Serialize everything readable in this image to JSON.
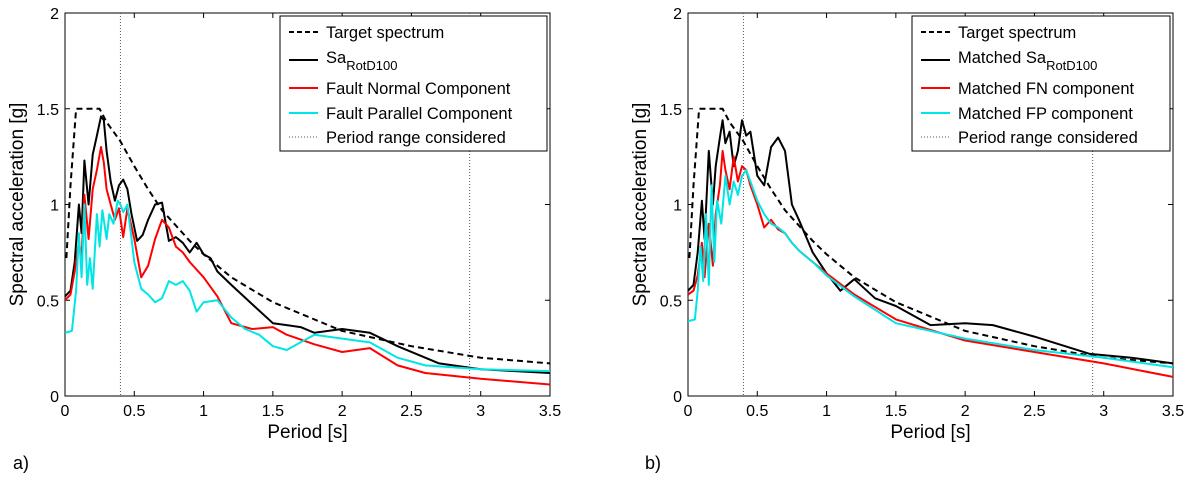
{
  "chart_data": [
    {
      "type": "line",
      "panel_label": "a)",
      "xlabel": "Period [s]",
      "ylabel": "Spectral acceleration [g]",
      "xlim": [
        0,
        3.5
      ],
      "ylim": [
        0,
        2
      ],
      "xticks": [
        "0",
        "0.5",
        "1",
        "1.5",
        "2",
        "2.5",
        "3",
        "3.5"
      ],
      "yticks": [
        "0",
        "0.5",
        "1",
        "1.5",
        "2"
      ],
      "legend_position": "top-right",
      "vlines": [
        0.4,
        2.92
      ],
      "series": [
        {
          "name": "Target spectrum",
          "color": "#000000",
          "style": "dashed",
          "x": [
            0.01,
            0.04,
            0.08,
            0.25,
            0.3,
            0.35,
            0.4,
            0.5,
            0.6,
            0.7,
            0.8,
            0.9,
            1.0,
            1.2,
            1.5,
            2.0,
            2.5,
            3.0,
            3.5
          ],
          "y": [
            0.72,
            1.1,
            1.5,
            1.5,
            1.43,
            1.38,
            1.33,
            1.2,
            1.08,
            0.97,
            0.89,
            0.81,
            0.74,
            0.62,
            0.49,
            0.34,
            0.26,
            0.2,
            0.17
          ]
        },
        {
          "name_main": "Sa",
          "name_sub": "RotD100",
          "color": "#000000",
          "style": "solid",
          "x": [
            0,
            0.04,
            0.07,
            0.1,
            0.12,
            0.14,
            0.17,
            0.2,
            0.23,
            0.26,
            0.28,
            0.3,
            0.33,
            0.36,
            0.39,
            0.42,
            0.45,
            0.48,
            0.52,
            0.56,
            0.6,
            0.65,
            0.7,
            0.75,
            0.8,
            0.85,
            0.9,
            0.95,
            1.0,
            1.05,
            1.1,
            1.2,
            1.35,
            1.5,
            1.6,
            1.7,
            1.8,
            2.0,
            2.2,
            2.4,
            2.7,
            3.0,
            3.5
          ],
          "y": [
            0.52,
            0.55,
            0.7,
            1.0,
            0.85,
            1.23,
            1.0,
            1.26,
            1.36,
            1.46,
            1.44,
            1.28,
            1.12,
            1.02,
            1.1,
            1.13,
            1.08,
            0.95,
            0.81,
            0.84,
            0.92,
            1.0,
            1.01,
            0.81,
            0.83,
            0.8,
            0.75,
            0.8,
            0.74,
            0.72,
            0.65,
            0.58,
            0.48,
            0.38,
            0.37,
            0.36,
            0.33,
            0.35,
            0.33,
            0.26,
            0.17,
            0.14,
            0.12
          ]
        },
        {
          "name": "Fault Normal Component",
          "color": "#ff0000",
          "style": "solid",
          "x": [
            0,
            0.04,
            0.07,
            0.1,
            0.12,
            0.14,
            0.17,
            0.2,
            0.23,
            0.26,
            0.28,
            0.3,
            0.33,
            0.36,
            0.39,
            0.42,
            0.45,
            0.5,
            0.55,
            0.6,
            0.65,
            0.7,
            0.75,
            0.8,
            0.85,
            0.9,
            1.0,
            1.1,
            1.2,
            1.35,
            1.5,
            1.6,
            1.8,
            2.0,
            2.2,
            2.4,
            2.6,
            3.0,
            3.5
          ],
          "y": [
            0.5,
            0.53,
            0.65,
            0.8,
            0.72,
            1.05,
            0.82,
            1.08,
            1.18,
            1.3,
            1.22,
            1.08,
            1.0,
            0.92,
            0.98,
            0.83,
            0.98,
            0.82,
            0.62,
            0.68,
            0.82,
            0.92,
            0.88,
            0.78,
            0.75,
            0.7,
            0.62,
            0.52,
            0.38,
            0.35,
            0.36,
            0.32,
            0.27,
            0.23,
            0.25,
            0.16,
            0.12,
            0.09,
            0.06
          ]
        },
        {
          "name": "Fault Parallel Component",
          "color": "#00e5e5",
          "style": "solid",
          "x": [
            0,
            0.05,
            0.08,
            0.1,
            0.12,
            0.14,
            0.16,
            0.18,
            0.2,
            0.23,
            0.25,
            0.27,
            0.3,
            0.32,
            0.35,
            0.38,
            0.4,
            0.42,
            0.45,
            0.5,
            0.55,
            0.6,
            0.65,
            0.7,
            0.75,
            0.8,
            0.85,
            0.9,
            0.95,
            1.0,
            1.1,
            1.2,
            1.3,
            1.4,
            1.5,
            1.6,
            1.8,
            2.0,
            2.2,
            2.4,
            2.6,
            3.0,
            3.5
          ],
          "y": [
            0.33,
            0.34,
            0.55,
            0.85,
            0.62,
            1.0,
            0.58,
            0.72,
            0.56,
            0.95,
            0.78,
            0.97,
            0.82,
            0.95,
            0.9,
            1.02,
            1.0,
            0.96,
            1.0,
            0.7,
            0.56,
            0.53,
            0.49,
            0.51,
            0.6,
            0.58,
            0.6,
            0.55,
            0.44,
            0.49,
            0.5,
            0.41,
            0.35,
            0.32,
            0.26,
            0.24,
            0.32,
            0.3,
            0.28,
            0.2,
            0.16,
            0.14,
            0.13
          ]
        }
      ]
    },
    {
      "type": "line",
      "panel_label": "b)",
      "xlabel": "Period [s]",
      "ylabel": "Spectral acceleration [g]",
      "xlim": [
        0,
        3.5
      ],
      "ylim": [
        0,
        2
      ],
      "xticks": [
        "0",
        "0.5",
        "1",
        "1.5",
        "2",
        "2.5",
        "3",
        "3.5"
      ],
      "yticks": [
        "0",
        "0.5",
        "1",
        "1.5",
        "2"
      ],
      "legend_position": "top-right",
      "vlines": [
        0.4,
        2.92
      ],
      "series": [
        {
          "name": "Target spectrum",
          "color": "#000000",
          "style": "dashed",
          "x": [
            0.01,
            0.04,
            0.08,
            0.25,
            0.3,
            0.35,
            0.4,
            0.5,
            0.6,
            0.7,
            0.8,
            0.9,
            1.0,
            1.2,
            1.5,
            2.0,
            2.5,
            3.0,
            3.5
          ],
          "y": [
            0.72,
            1.1,
            1.5,
            1.5,
            1.43,
            1.38,
            1.33,
            1.2,
            1.08,
            0.97,
            0.89,
            0.81,
            0.74,
            0.62,
            0.49,
            0.34,
            0.26,
            0.2,
            0.17
          ]
        },
        {
          "name_main": "Matched Sa",
          "name_sub": "RotD100",
          "color": "#000000",
          "style": "solid",
          "x": [
            0,
            0.04,
            0.07,
            0.1,
            0.12,
            0.15,
            0.18,
            0.2,
            0.23,
            0.25,
            0.27,
            0.3,
            0.33,
            0.36,
            0.39,
            0.42,
            0.45,
            0.5,
            0.55,
            0.6,
            0.65,
            0.7,
            0.75,
            0.8,
            0.9,
            1.0,
            1.1,
            1.2,
            1.35,
            1.5,
            1.75,
            2.0,
            2.2,
            2.5,
            2.9,
            3.2,
            3.5
          ],
          "y": [
            0.55,
            0.58,
            0.75,
            1.02,
            0.82,
            1.28,
            1.0,
            1.2,
            1.35,
            1.44,
            1.32,
            1.38,
            1.2,
            1.28,
            1.44,
            1.36,
            1.38,
            1.15,
            1.1,
            1.3,
            1.35,
            1.28,
            1.0,
            0.92,
            0.75,
            0.64,
            0.55,
            0.61,
            0.51,
            0.47,
            0.37,
            0.38,
            0.37,
            0.31,
            0.22,
            0.2,
            0.17
          ]
        },
        {
          "name": "Matched FN component",
          "color": "#ff0000",
          "style": "solid",
          "x": [
            0,
            0.04,
            0.07,
            0.1,
            0.12,
            0.15,
            0.18,
            0.2,
            0.23,
            0.25,
            0.27,
            0.3,
            0.33,
            0.36,
            0.39,
            0.42,
            0.45,
            0.5,
            0.55,
            0.6,
            0.65,
            0.7,
            0.75,
            0.8,
            0.9,
            1.0,
            1.2,
            1.5,
            2.0,
            2.5,
            3.0,
            3.5
          ],
          "y": [
            0.53,
            0.55,
            0.63,
            0.8,
            0.62,
            0.9,
            0.68,
            0.95,
            1.1,
            1.28,
            1.18,
            1.08,
            1.25,
            1.12,
            1.2,
            1.18,
            1.1,
            1.0,
            0.88,
            0.92,
            0.87,
            0.85,
            0.8,
            0.76,
            0.7,
            0.64,
            0.53,
            0.4,
            0.29,
            0.23,
            0.17,
            0.1
          ]
        },
        {
          "name": "Matched FP component",
          "color": "#00e5e5",
          "style": "solid",
          "x": [
            0,
            0.05,
            0.07,
            0.09,
            0.11,
            0.13,
            0.15,
            0.17,
            0.19,
            0.21,
            0.24,
            0.27,
            0.3,
            0.33,
            0.36,
            0.39,
            0.42,
            0.45,
            0.5,
            0.55,
            0.6,
            0.65,
            0.7,
            0.75,
            0.8,
            0.9,
            1.0,
            1.2,
            1.5,
            2.0,
            2.5,
            3.0,
            3.5
          ],
          "y": [
            0.39,
            0.4,
            0.55,
            0.78,
            0.6,
            0.95,
            0.58,
            1.1,
            0.7,
            1.02,
            0.9,
            1.15,
            1.0,
            1.12,
            1.05,
            1.15,
            1.18,
            1.12,
            1.02,
            0.95,
            0.9,
            0.88,
            0.85,
            0.8,
            0.76,
            0.7,
            0.63,
            0.52,
            0.38,
            0.3,
            0.24,
            0.2,
            0.15
          ]
        }
      ]
    }
  ]
}
